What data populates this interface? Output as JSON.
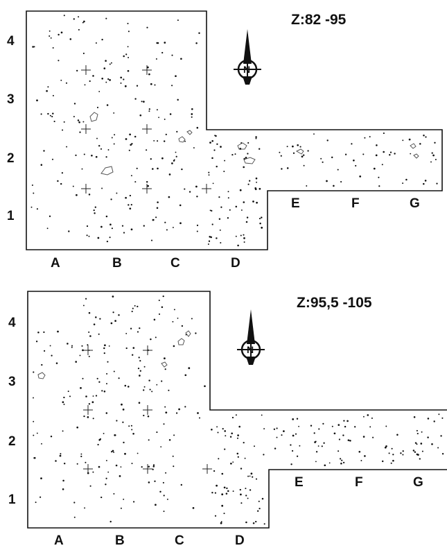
{
  "panels": [
    {
      "title": "Z:82 -95",
      "columns": [
        "A",
        "B",
        "C",
        "D",
        "E",
        "F",
        "G"
      ],
      "rows": [
        "4",
        "3",
        "2",
        "1"
      ],
      "compass_label": "N"
    },
    {
      "title": "Z:95,5 -105",
      "columns": [
        "A",
        "B",
        "C",
        "D",
        "E",
        "F",
        "G"
      ],
      "rows": [
        "4",
        "3",
        "2",
        "1"
      ],
      "compass_label": "N"
    }
  ],
  "colors": {
    "ink": "#111111",
    "paper": "#ffffff"
  }
}
